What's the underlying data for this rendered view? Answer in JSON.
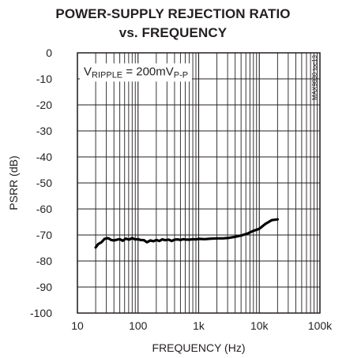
{
  "chart_data": {
    "type": "line",
    "title_line1": "POWER-SUPPLY REJECTION RATIO",
    "title_line2": "vs. FREQUENCY",
    "xlabel": "FREQUENCY (Hz)",
    "ylabel": "PSRR (dB)",
    "x_scale": "log",
    "xlim": [
      10,
      100000
    ],
    "ylim": [
      -100,
      0
    ],
    "x_ticks": [
      10,
      100,
      1000,
      10000,
      100000
    ],
    "x_tick_labels": [
      "10",
      "100",
      "1k",
      "10k",
      "100k"
    ],
    "y_ticks": [
      0,
      -10,
      -20,
      -30,
      -40,
      -50,
      -60,
      -70,
      -80,
      -90,
      -100
    ],
    "y_tick_labels": [
      "0",
      "-10",
      "-20",
      "-30",
      "-40",
      "-50",
      "-60",
      "-70",
      "-80",
      "-90",
      "-100"
    ],
    "grid": true,
    "annotation": {
      "main": "V",
      "sub": "RIPPLE",
      "equals": " = 200mV",
      "sub2": "P-P"
    },
    "side_code": "MAX9830 toc13",
    "series": [
      {
        "x": [
          20,
          22,
          25,
          28,
          32,
          36,
          40,
          45,
          50,
          56,
          63,
          71,
          80,
          90,
          100,
          110,
          125,
          140,
          160,
          180,
          200,
          225,
          250,
          280,
          320,
          360,
          400,
          450,
          500,
          560,
          630,
          710,
          800,
          900,
          1000,
          1250,
          1600,
          2000,
          2500,
          3200,
          4000,
          5000,
          6300,
          8000,
          10000,
          12500,
          16000,
          20000
        ],
        "y": [
          -74.8,
          -73.5,
          -72.8,
          -71.5,
          -71.2,
          -71.9,
          -72.1,
          -71.8,
          -71.6,
          -72.2,
          -71.4,
          -71.8,
          -71.2,
          -71.7,
          -71.6,
          -71.9,
          -72.0,
          -72.8,
          -72.1,
          -72.4,
          -71.9,
          -72.3,
          -71.7,
          -72.0,
          -71.8,
          -72.3,
          -71.8,
          -71.7,
          -71.9,
          -71.6,
          -71.8,
          -71.8,
          -71.6,
          -71.7,
          -71.5,
          -71.6,
          -71.4,
          -71.3,
          -71.3,
          -71.1,
          -70.7,
          -70.2,
          -69.5,
          -68.4,
          -67.6,
          -65.8,
          -64.3,
          -64.0
        ]
      }
    ]
  }
}
